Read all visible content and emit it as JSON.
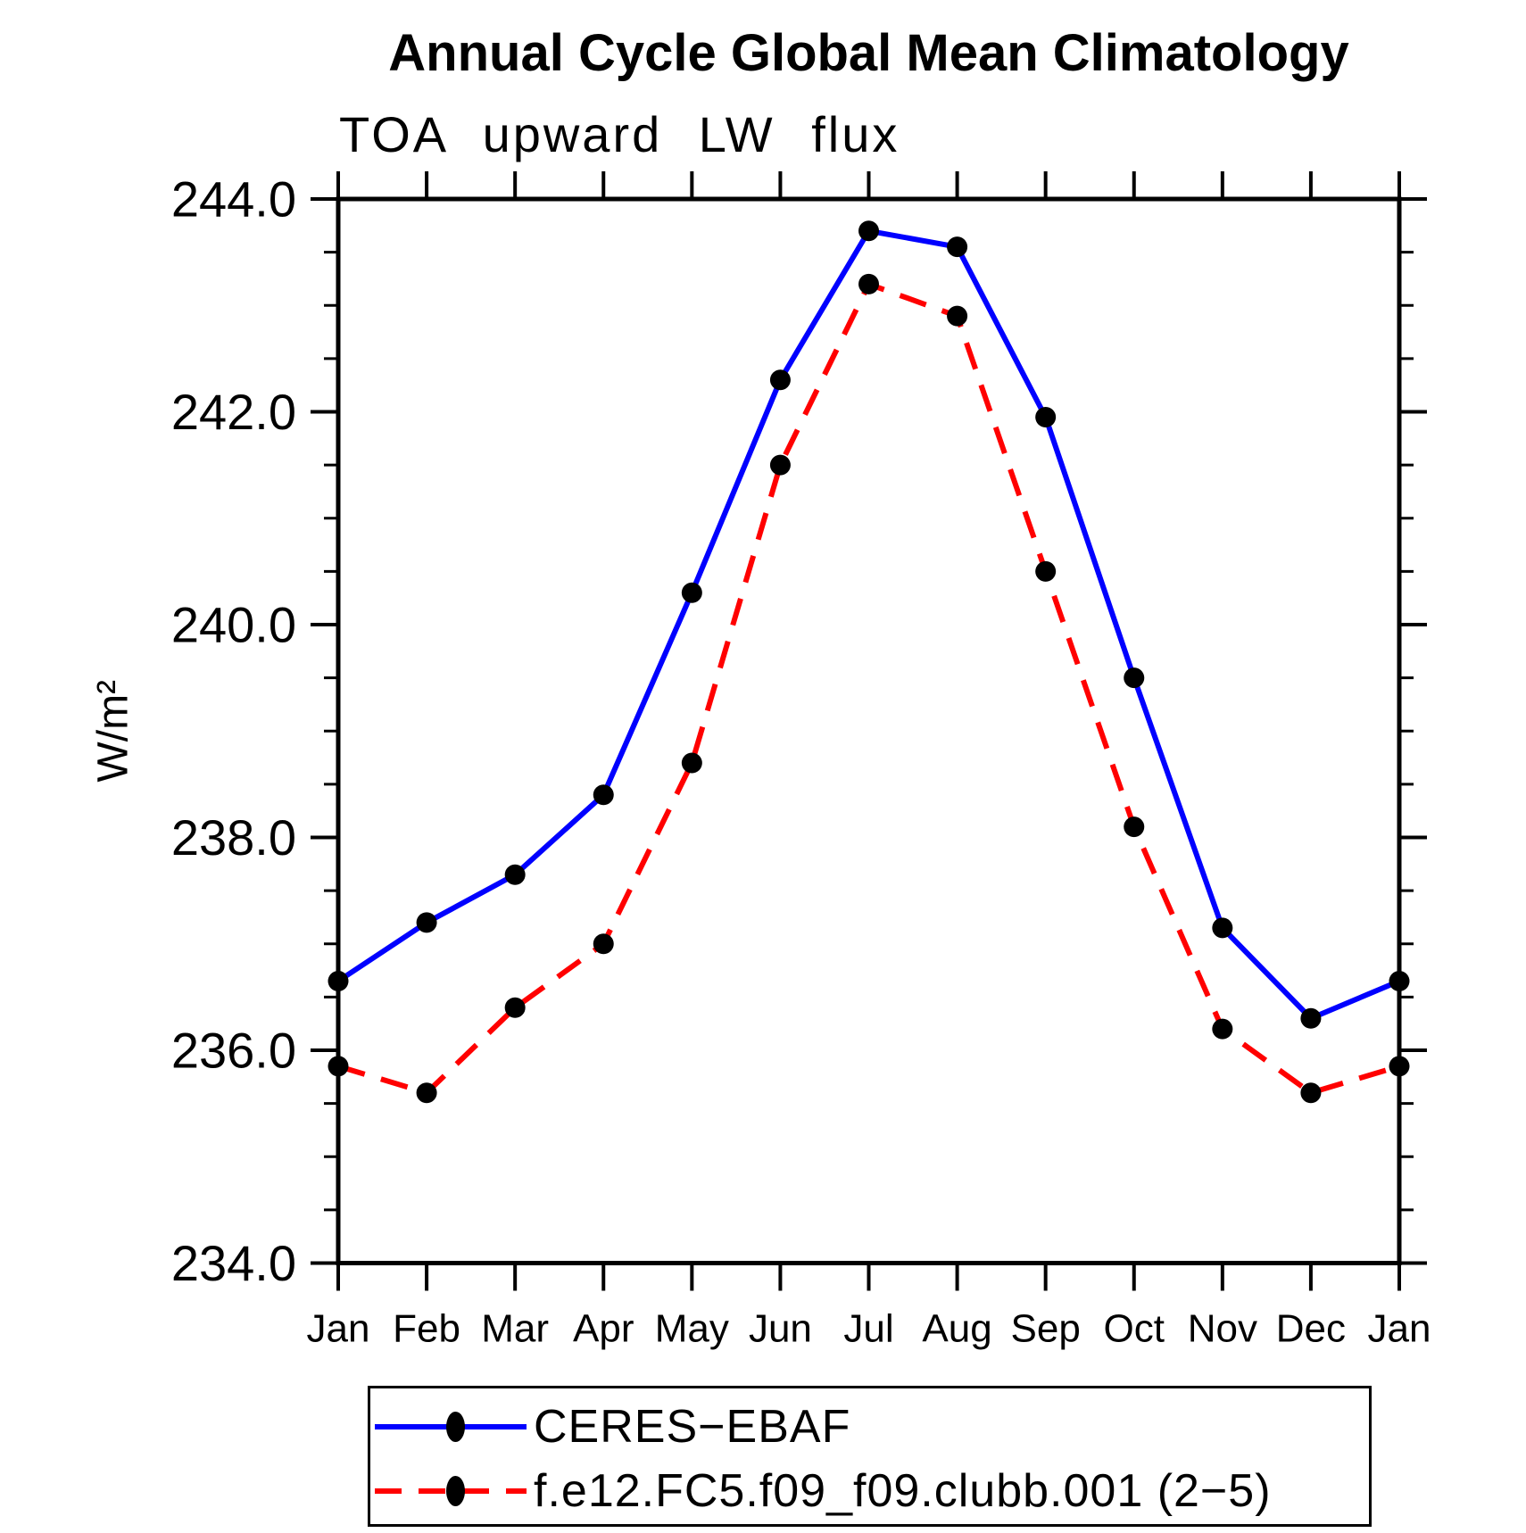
{
  "chart_data": {
    "type": "line",
    "title": "Annual Cycle Global Mean Climatology",
    "subtitle": "TOA upward LW flux",
    "ylabel": "W/m²",
    "categories": [
      "Jan",
      "Feb",
      "Mar",
      "Apr",
      "May",
      "Jun",
      "Jul",
      "Aug",
      "Sep",
      "Oct",
      "Nov",
      "Dec",
      "Jan"
    ],
    "ylim": [
      234.0,
      244.0
    ],
    "ytick_major_step": 2.0,
    "ytick_minor_step": 0.5,
    "ytick_labels": [
      "234.0",
      "236.0",
      "238.0",
      "240.0",
      "242.0",
      "244.0"
    ],
    "grid": "off",
    "legend_position": "bottom",
    "series": [
      {
        "name": "CERES−EBAF",
        "color": "#0000ff",
        "line_style": "solid",
        "marker": "filled-circle",
        "marker_color": "#000000",
        "values": [
          236.65,
          237.2,
          237.65,
          238.4,
          240.3,
          242.3,
          243.7,
          243.55,
          241.95,
          239.5,
          237.15,
          236.3,
          236.65
        ]
      },
      {
        "name": "f.e12.FC5.f09_f09.clubb.001 (2−5)",
        "color": "#ff0000",
        "line_style": "dashed",
        "marker": "filled-circle",
        "marker_color": "#000000",
        "values": [
          235.85,
          235.6,
          236.4,
          237.0,
          238.7,
          241.5,
          243.2,
          242.9,
          240.5,
          238.1,
          236.2,
          235.6,
          235.85
        ]
      }
    ]
  }
}
